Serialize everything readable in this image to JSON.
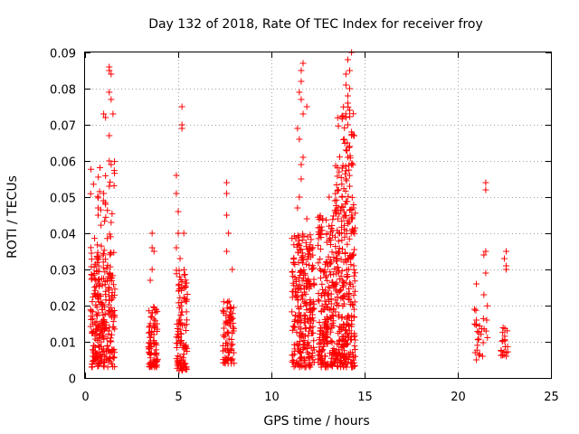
{
  "chart_data": {
    "type": "scatter",
    "title": "Day 132 of 2018, Rate Of TEC Index for receiver froy",
    "xlabel": "GPS time / hours",
    "ylabel": "ROTI / TECUs",
    "xlim": [
      0,
      25
    ],
    "ylim": [
      0,
      0.09
    ],
    "xticks": [
      0,
      5,
      10,
      15,
      20,
      25
    ],
    "xtick_labels": [
      "0",
      "5",
      "10",
      "15",
      "20",
      "25"
    ],
    "yticks": [
      0,
      0.01,
      0.02,
      0.03,
      0.04,
      0.05,
      0.06,
      0.07,
      0.08,
      0.09
    ],
    "ytick_labels": [
      "0",
      "0.01",
      "0.02",
      "0.03",
      "0.04",
      "0.05",
      "0.06",
      "0.07",
      "0.08",
      "0.09"
    ],
    "grid": true,
    "marker": "+",
    "color": "#ff0000",
    "series": [
      {
        "name": "ROTI",
        "clusters": [
          {
            "x": [
              0.3,
              1.6
            ],
            "y": [
              0.003,
              0.035
            ],
            "n": 260
          },
          {
            "x": [
              0.3,
              1.6
            ],
            "y": [
              0.035,
              0.06
            ],
            "n": 30
          },
          {
            "x": [
              3.4,
              3.9
            ],
            "y": [
              0.003,
              0.02
            ],
            "n": 90
          },
          {
            "x": [
              4.9,
              5.5
            ],
            "y": [
              0.002,
              0.03
            ],
            "n": 110
          },
          {
            "x": [
              7.4,
              8.0
            ],
            "y": [
              0.004,
              0.022
            ],
            "n": 80
          },
          {
            "x": [
              11.1,
              12.3
            ],
            "y": [
              0.003,
              0.04
            ],
            "n": 260
          },
          {
            "x": [
              12.5,
              14.5
            ],
            "y": [
              0.003,
              0.045
            ],
            "n": 460
          },
          {
            "x": [
              13.4,
              14.5
            ],
            "y": [
              0.045,
              0.075
            ],
            "n": 70
          },
          {
            "x": [
              20.9,
              21.6
            ],
            "y": [
              0.006,
              0.02
            ],
            "n": 25
          },
          {
            "x": [
              22.3,
              22.7
            ],
            "y": [
              0.006,
              0.014
            ],
            "n": 20
          }
        ],
        "points": [
          [
            1.3,
            0.086
          ],
          [
            1.3,
            0.085
          ],
          [
            1.4,
            0.084
          ],
          [
            1.3,
            0.079
          ],
          [
            1.4,
            0.077
          ],
          [
            1.0,
            0.073
          ],
          [
            1.1,
            0.072
          ],
          [
            1.5,
            0.073
          ],
          [
            1.3,
            0.067
          ],
          [
            1.3,
            0.06
          ],
          [
            1.4,
            0.059
          ],
          [
            1.0,
            0.051
          ],
          [
            1.3,
            0.053
          ],
          [
            1.1,
            0.048
          ],
          [
            0.7,
            0.047
          ],
          [
            0.7,
            0.045
          ],
          [
            1.4,
            0.043
          ],
          [
            3.6,
            0.04
          ],
          [
            3.6,
            0.036
          ],
          [
            3.7,
            0.035
          ],
          [
            3.6,
            0.03
          ],
          [
            3.5,
            0.027
          ],
          [
            5.2,
            0.075
          ],
          [
            5.2,
            0.07
          ],
          [
            5.2,
            0.069
          ],
          [
            4.9,
            0.056
          ],
          [
            4.9,
            0.051
          ],
          [
            5.0,
            0.046
          ],
          [
            5.0,
            0.04
          ],
          [
            5.3,
            0.04
          ],
          [
            4.9,
            0.036
          ],
          [
            5.1,
            0.033
          ],
          [
            7.6,
            0.054
          ],
          [
            7.6,
            0.051
          ],
          [
            7.6,
            0.045
          ],
          [
            7.7,
            0.04
          ],
          [
            7.6,
            0.035
          ],
          [
            7.9,
            0.03
          ],
          [
            11.7,
            0.087
          ],
          [
            11.6,
            0.085
          ],
          [
            11.6,
            0.082
          ],
          [
            11.5,
            0.079
          ],
          [
            11.6,
            0.077
          ],
          [
            11.9,
            0.075
          ],
          [
            11.7,
            0.073
          ],
          [
            11.4,
            0.069
          ],
          [
            11.5,
            0.066
          ],
          [
            11.7,
            0.061
          ],
          [
            11.6,
            0.059
          ],
          [
            11.6,
            0.055
          ],
          [
            11.5,
            0.05
          ],
          [
            11.4,
            0.047
          ],
          [
            11.9,
            0.044
          ],
          [
            11.8,
            0.003
          ],
          [
            14.3,
            0.09
          ],
          [
            14.1,
            0.088
          ],
          [
            14.2,
            0.085
          ],
          [
            14.0,
            0.084
          ],
          [
            14.0,
            0.081
          ],
          [
            14.2,
            0.08
          ],
          [
            14.1,
            0.078
          ],
          [
            14.1,
            0.076
          ],
          [
            14.2,
            0.074
          ],
          [
            14.0,
            0.072
          ],
          [
            14.1,
            0.07
          ],
          [
            14.3,
            0.068
          ],
          [
            13.9,
            0.066
          ],
          [
            14.2,
            0.064
          ],
          [
            14.0,
            0.063
          ],
          [
            14.1,
            0.061
          ],
          [
            14.3,
            0.059
          ],
          [
            13.8,
            0.058
          ],
          [
            14.0,
            0.055
          ],
          [
            14.2,
            0.053
          ],
          [
            13.6,
            0.052
          ],
          [
            13.8,
            0.05
          ],
          [
            13.1,
            0.05
          ],
          [
            13.4,
            0.049
          ],
          [
            14.4,
            0.047
          ],
          [
            14.3,
            0.044
          ],
          [
            14.3,
            0.003
          ],
          [
            21.5,
            0.054
          ],
          [
            21.5,
            0.052
          ],
          [
            21.5,
            0.035
          ],
          [
            21.4,
            0.034
          ],
          [
            21.5,
            0.029
          ],
          [
            21.0,
            0.026
          ],
          [
            21.4,
            0.023
          ],
          [
            20.9,
            0.019
          ],
          [
            21.0,
            0.016
          ],
          [
            21.0,
            0.005
          ],
          [
            22.6,
            0.035
          ],
          [
            22.5,
            0.033
          ],
          [
            22.6,
            0.031
          ],
          [
            22.6,
            0.03
          ],
          [
            22.6,
            0.006
          ]
        ]
      }
    ]
  }
}
